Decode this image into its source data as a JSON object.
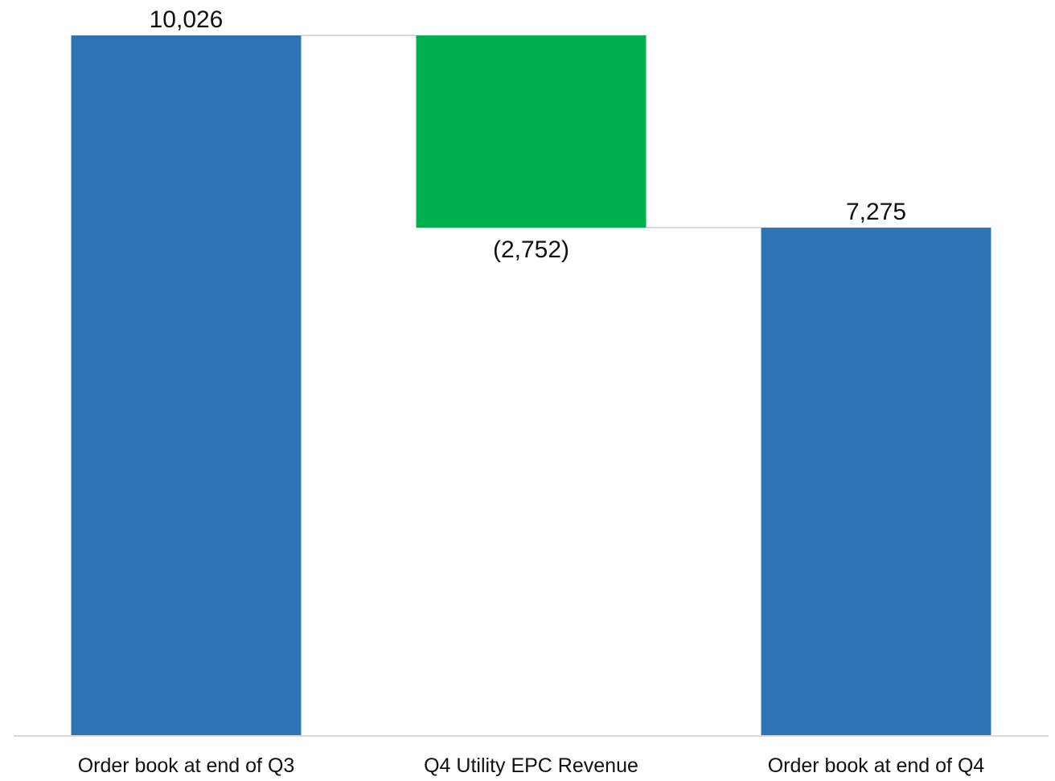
{
  "chart_data": {
    "type": "waterfall",
    "categories": [
      "Order book at end of Q3",
      "Q4 Utility EPC Revenue",
      "Order book at end of Q4"
    ],
    "values": [
      10026,
      -2752,
      7275
    ],
    "bar_kinds": [
      "total",
      "decrease",
      "total"
    ],
    "data_labels": [
      "10,026",
      "(2,752)",
      "7,275"
    ],
    "title": "",
    "xlabel": "",
    "ylabel": "",
    "ylim": [
      0,
      10026
    ],
    "grid": false,
    "legend": "none",
    "connector_lines": true
  },
  "colors": {
    "total": "#2e74b5",
    "decrease": "#00b050",
    "axis": "#d9d9d9",
    "connector": "#d9d9d9",
    "text": "#111111"
  }
}
